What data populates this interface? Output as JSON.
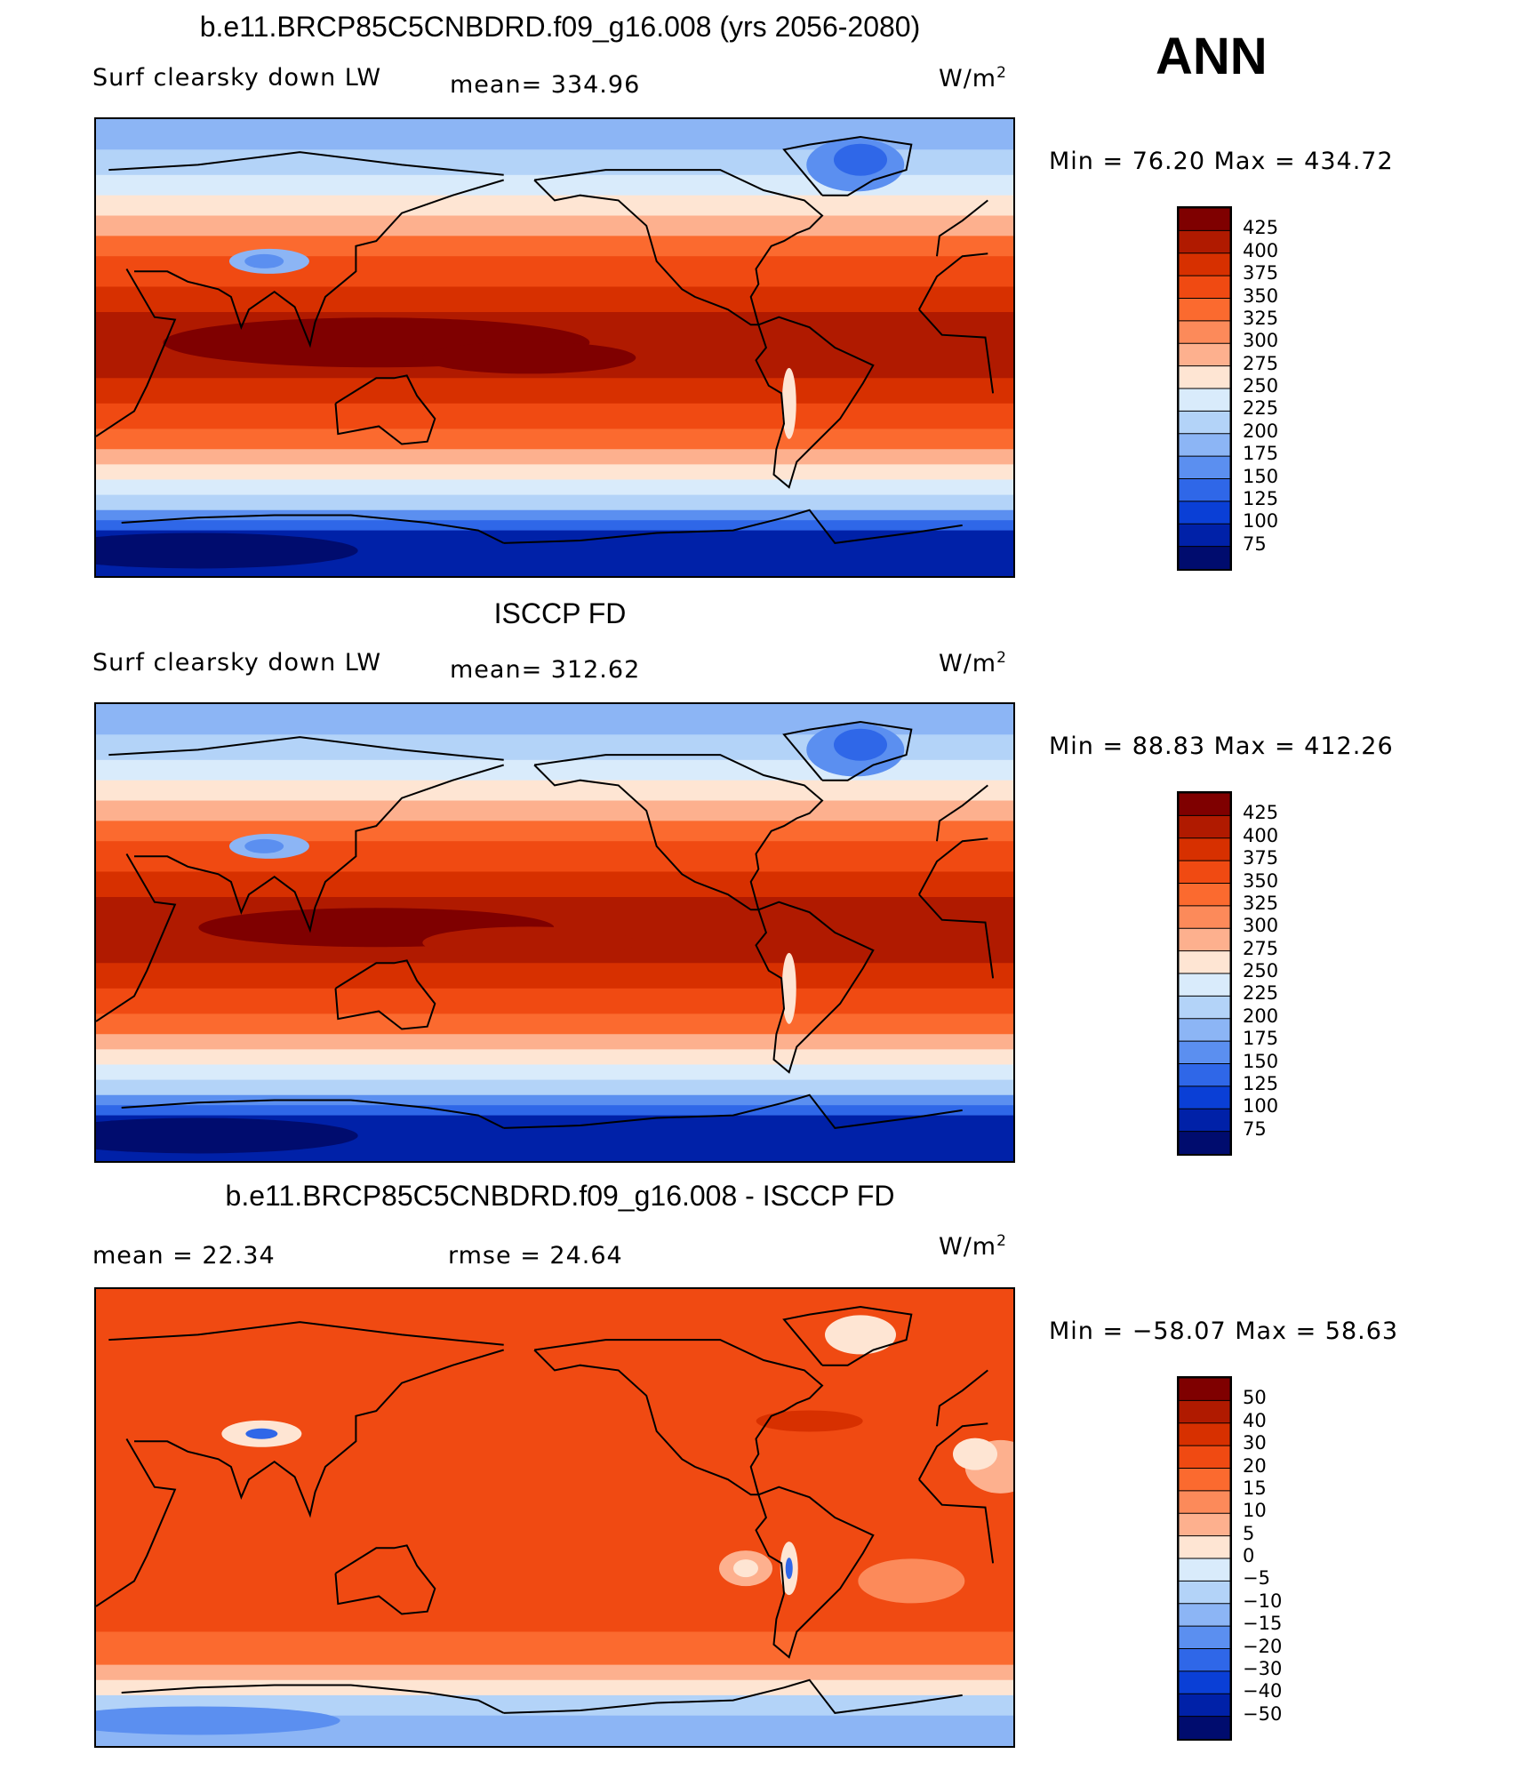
{
  "season": "ANN",
  "panels": [
    {
      "title": "b.e11.BRCP85C5CNBDRD.f09_g16.008 (yrs 2056-2080)",
      "variable": "Surf clearsky down LW",
      "stat1": "mean=  334.96",
      "stat2": "",
      "units": "W/m",
      "units_sup": "2",
      "minmax": "Min =   76.20  Max =  434.72",
      "field": "model"
    },
    {
      "title": "ISCCP FD",
      "variable": "Surf clearsky down LW",
      "stat1": "mean=  312.62",
      "stat2": "",
      "units": "W/m",
      "units_sup": "2",
      "minmax": "Min =   88.83  Max =  412.26",
      "field": "obs"
    },
    {
      "title": "b.e11.BRCP85C5CNBDRD.f09_g16.008 - ISCCP FD",
      "variable": "",
      "stat1": "mean =    22.34",
      "stat2": "rmse =    24.64",
      "units": "W/m",
      "units_sup": "2",
      "minmax": "Min =  −58.07  Max =    58.63",
      "field": "diff"
    }
  ],
  "colorbars": {
    "absolute": {
      "labels": [
        "425",
        "400",
        "375",
        "350",
        "325",
        "300",
        "275",
        "250",
        "225",
        "200",
        "175",
        "150",
        "125",
        "100",
        "75"
      ],
      "colors": [
        "#7f0000",
        "#b01a00",
        "#d73000",
        "#f04a12",
        "#fb6a2f",
        "#fc8a5a",
        "#fdb08e",
        "#fee5d3",
        "#d9ebfb",
        "#b3d3f8",
        "#8cb5f5",
        "#5b8ff0",
        "#2f67e8",
        "#0a3fd6",
        "#0021a8",
        "#000c6e"
      ]
    },
    "difference": {
      "labels": [
        "50",
        "40",
        "30",
        "20",
        "15",
        "10",
        "5",
        "0",
        "−5",
        "−10",
        "−15",
        "−20",
        "−30",
        "−40",
        "−50"
      ],
      "colors": [
        "#7f0000",
        "#b01a00",
        "#d73000",
        "#f04a12",
        "#fb6a2f",
        "#fc8a5a",
        "#fdb08e",
        "#fee5d3",
        "#d9ebfb",
        "#b3d3f8",
        "#8cb5f5",
        "#5b8ff0",
        "#2f67e8",
        "#0a3fd6",
        "#0021a8",
        "#000c6e"
      ]
    }
  }
}
